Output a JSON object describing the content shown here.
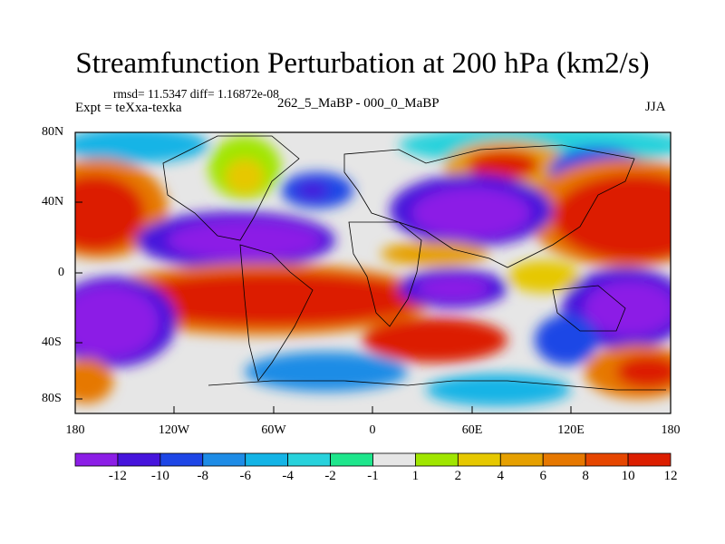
{
  "title": "Streamfunction Perturbation at 200 hPa (km2/s)",
  "stats": "rmsd= 11.5347 diff= 1.16872e-08",
  "experiment": "Expt = teXxa-texka",
  "comparison": "262_5_MaBP - 000_0_MaBP",
  "season": "JJA",
  "lat_ticks": [
    "80N",
    "40N",
    "0",
    "40S",
    "80S"
  ],
  "lon_ticks": [
    "180",
    "120W",
    "60W",
    "0",
    "60E",
    "120E",
    "180"
  ],
  "colorbar": {
    "colors": [
      "#8c1ee6",
      "#4614dc",
      "#1e46e6",
      "#1e8ce6",
      "#14b4e6",
      "#28d2dc",
      "#1ee68c",
      "#e6e6e6",
      "#a0e600",
      "#e6c800",
      "#e6a000",
      "#e67800",
      "#e64600",
      "#dc1e00"
    ],
    "labels": [
      "-12",
      "-10",
      "-8",
      "-6",
      "-4",
      "-2",
      "-1",
      "1",
      "2",
      "4",
      "6",
      "8",
      "10",
      "12"
    ]
  }
}
